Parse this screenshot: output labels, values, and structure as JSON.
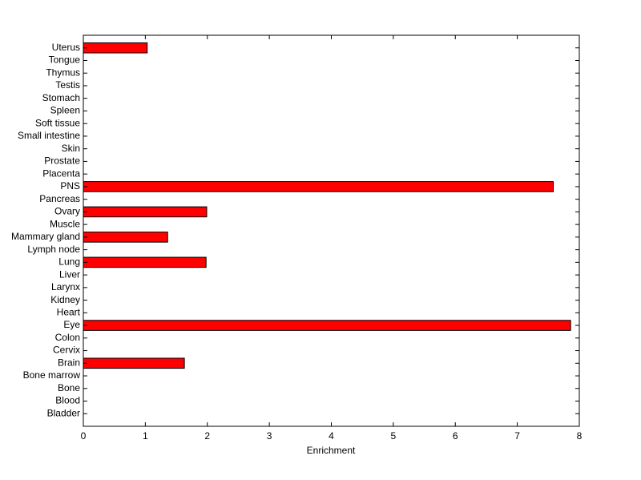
{
  "chart_data": {
    "type": "barh",
    "x_label": "Enrichment",
    "categories": [
      "Bladder",
      "Blood",
      "Bone",
      "Bone marrow",
      "Brain",
      "Cervix",
      "Colon",
      "Eye",
      "Heart",
      "Kidney",
      "Larynx",
      "Liver",
      "Lung",
      "Lymph node",
      "Mammary gland",
      "Muscle",
      "Ovary",
      "Pancreas",
      "PNS",
      "Placenta",
      "Prostate",
      "Skin",
      "Small intestine",
      "Soft tissue",
      "Spleen",
      "Stomach",
      "Testis",
      "Thymus",
      "Tongue",
      "Uterus"
    ],
    "values": [
      0,
      0,
      0,
      0,
      1.63,
      0,
      0,
      7.86,
      0,
      0,
      0,
      0,
      1.98,
      0,
      1.36,
      0,
      1.99,
      0,
      7.58,
      0,
      0,
      0,
      0,
      0,
      0,
      0,
      0,
      0,
      0,
      1.03
    ],
    "color": "#ff0000",
    "xlim": [
      0,
      8
    ],
    "xticks": [
      0,
      1,
      2,
      3,
      4,
      5,
      6,
      7,
      8
    ]
  }
}
